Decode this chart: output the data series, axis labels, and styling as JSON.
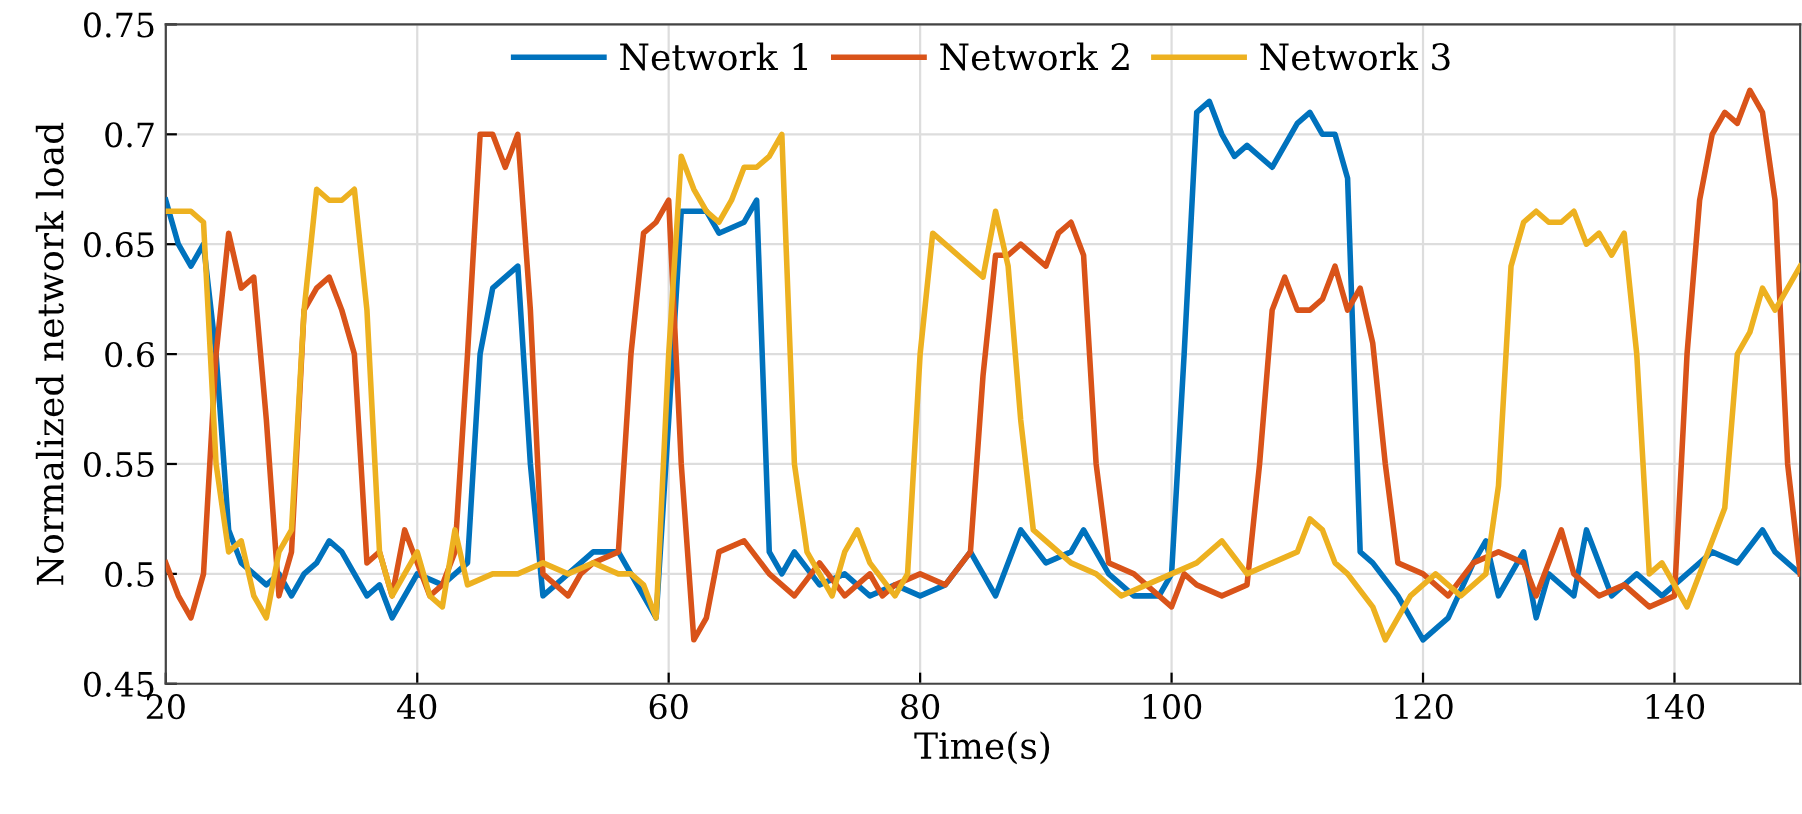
{
  "chart_data": {
    "type": "line",
    "xlabel": "Time(s)",
    "ylabel": "Normalized network load",
    "xlim": [
      20,
      150
    ],
    "xticks": [
      20,
      40,
      60,
      80,
      100,
      120,
      140
    ],
    "ylim": [
      0.45,
      0.75
    ],
    "yticks": [
      0.45,
      0.5,
      0.55,
      0.6,
      0.65,
      0.7,
      0.75
    ],
    "grid": true,
    "legend": "top",
    "marker": "none",
    "line_style": "solid",
    "series": [
      {
        "name": "Network 1",
        "color": "#0072bd",
        "x": [
          20,
          21,
          22,
          23,
          24,
          25,
          26,
          27,
          28,
          29,
          30,
          31,
          32,
          33,
          34,
          35,
          36,
          37,
          38,
          40,
          42,
          44,
          45,
          46,
          47,
          48,
          49,
          50,
          52,
          54,
          56,
          57,
          58,
          59,
          60,
          61,
          63,
          64,
          66,
          67,
          68,
          69,
          70,
          72,
          74,
          76,
          78,
          80,
          82,
          84,
          86,
          88,
          90,
          92,
          93,
          95,
          97,
          99,
          100,
          101,
          102,
          103,
          104,
          105,
          106,
          108,
          110,
          111,
          112,
          113,
          114,
          115,
          116,
          118,
          119,
          120,
          122,
          124,
          125,
          126,
          128,
          129,
          130,
          132,
          133,
          135,
          137,
          139,
          141,
          143,
          145,
          147,
          148,
          150
        ],
        "values": [
          0.67,
          0.65,
          0.64,
          0.65,
          0.6,
          0.52,
          0.505,
          0.5,
          0.495,
          0.5,
          0.49,
          0.5,
          0.505,
          0.515,
          0.51,
          0.5,
          0.49,
          0.495,
          0.48,
          0.5,
          0.495,
          0.505,
          0.6,
          0.63,
          0.635,
          0.64,
          0.55,
          0.49,
          0.5,
          0.51,
          0.51,
          0.5,
          0.49,
          0.48,
          0.57,
          0.665,
          0.665,
          0.655,
          0.66,
          0.67,
          0.51,
          0.5,
          0.51,
          0.495,
          0.5,
          0.49,
          0.495,
          0.49,
          0.495,
          0.51,
          0.49,
          0.52,
          0.505,
          0.51,
          0.52,
          0.5,
          0.49,
          0.49,
          0.5,
          0.6,
          0.71,
          0.715,
          0.7,
          0.69,
          0.695,
          0.685,
          0.705,
          0.71,
          0.7,
          0.7,
          0.68,
          0.51,
          0.505,
          0.49,
          0.48,
          0.47,
          0.48,
          0.505,
          0.515,
          0.49,
          0.51,
          0.48,
          0.5,
          0.49,
          0.52,
          0.49,
          0.5,
          0.49,
          0.5,
          0.51,
          0.505,
          0.52,
          0.51,
          0.5
        ]
      },
      {
        "name": "Network 2",
        "color": "#d95319",
        "x": [
          20,
          21,
          22,
          23,
          24,
          25,
          26,
          27,
          28,
          29,
          30,
          31,
          32,
          33,
          34,
          35,
          36,
          37,
          38,
          39,
          40,
          41,
          42,
          43,
          44,
          45,
          46,
          47,
          48,
          49,
          50,
          52,
          53,
          54,
          56,
          57,
          58,
          59,
          60,
          61,
          62,
          63,
          64,
          66,
          68,
          70,
          72,
          74,
          76,
          77,
          78,
          80,
          82,
          84,
          85,
          86,
          87,
          88,
          89,
          90,
          91,
          92,
          93,
          94,
          95,
          97,
          99,
          100,
          101,
          102,
          104,
          106,
          107,
          108,
          109,
          110,
          111,
          112,
          113,
          114,
          115,
          116,
          117,
          118,
          120,
          122,
          124,
          126,
          128,
          129,
          131,
          132,
          134,
          136,
          138,
          140,
          141,
          142,
          143,
          144,
          145,
          146,
          147,
          148,
          149,
          150
        ],
        "values": [
          0.505,
          0.49,
          0.48,
          0.5,
          0.6,
          0.655,
          0.63,
          0.635,
          0.57,
          0.49,
          0.51,
          0.62,
          0.63,
          0.635,
          0.62,
          0.6,
          0.505,
          0.51,
          0.49,
          0.52,
          0.505,
          0.49,
          0.495,
          0.51,
          0.6,
          0.7,
          0.7,
          0.685,
          0.7,
          0.62,
          0.5,
          0.49,
          0.5,
          0.505,
          0.51,
          0.6,
          0.655,
          0.66,
          0.67,
          0.55,
          0.47,
          0.48,
          0.51,
          0.515,
          0.5,
          0.49,
          0.505,
          0.49,
          0.5,
          0.49,
          0.495,
          0.5,
          0.495,
          0.51,
          0.59,
          0.645,
          0.645,
          0.65,
          0.645,
          0.64,
          0.655,
          0.66,
          0.645,
          0.55,
          0.505,
          0.5,
          0.49,
          0.485,
          0.5,
          0.495,
          0.49,
          0.495,
          0.55,
          0.62,
          0.635,
          0.62,
          0.62,
          0.625,
          0.64,
          0.62,
          0.63,
          0.605,
          0.55,
          0.505,
          0.5,
          0.49,
          0.505,
          0.51,
          0.505,
          0.49,
          0.52,
          0.5,
          0.49,
          0.495,
          0.485,
          0.49,
          0.6,
          0.67,
          0.7,
          0.71,
          0.705,
          0.72,
          0.71,
          0.67,
          0.55,
          0.5
        ]
      },
      {
        "name": "Network 3",
        "color": "#edb120",
        "x": [
          20,
          21,
          22,
          23,
          24,
          25,
          26,
          27,
          28,
          29,
          30,
          31,
          32,
          33,
          34,
          35,
          36,
          37,
          38,
          40,
          41,
          42,
          43,
          44,
          46,
          48,
          50,
          52,
          54,
          56,
          57,
          58,
          59,
          60,
          61,
          62,
          63,
          64,
          65,
          66,
          67,
          68,
          69,
          70,
          71,
          72,
          73,
          74,
          75,
          76,
          78,
          79,
          80,
          81,
          82,
          83,
          84,
          85,
          86,
          87,
          88,
          89,
          90,
          92,
          94,
          96,
          98,
          100,
          102,
          104,
          106,
          108,
          110,
          111,
          112,
          113,
          114,
          116,
          117,
          119,
          121,
          123,
          125,
          126,
          127,
          128,
          129,
          130,
          131,
          132,
          133,
          134,
          135,
          136,
          137,
          138,
          139,
          140,
          141,
          142,
          144,
          145,
          146,
          147,
          148,
          149,
          150
        ],
        "values": [
          0.665,
          0.665,
          0.665,
          0.66,
          0.55,
          0.51,
          0.515,
          0.49,
          0.48,
          0.51,
          0.52,
          0.62,
          0.675,
          0.67,
          0.67,
          0.675,
          0.62,
          0.51,
          0.49,
          0.51,
          0.49,
          0.485,
          0.52,
          0.495,
          0.5,
          0.5,
          0.505,
          0.5,
          0.505,
          0.5,
          0.5,
          0.495,
          0.48,
          0.6,
          0.69,
          0.675,
          0.665,
          0.66,
          0.67,
          0.685,
          0.685,
          0.69,
          0.7,
          0.55,
          0.51,
          0.5,
          0.49,
          0.51,
          0.52,
          0.505,
          0.49,
          0.5,
          0.6,
          0.655,
          0.65,
          0.645,
          0.64,
          0.635,
          0.665,
          0.64,
          0.57,
          0.52,
          0.515,
          0.505,
          0.5,
          0.49,
          0.495,
          0.5,
          0.505,
          0.515,
          0.5,
          0.505,
          0.51,
          0.525,
          0.52,
          0.505,
          0.5,
          0.485,
          0.47,
          0.49,
          0.5,
          0.49,
          0.5,
          0.54,
          0.64,
          0.66,
          0.665,
          0.66,
          0.66,
          0.665,
          0.65,
          0.655,
          0.645,
          0.655,
          0.6,
          0.5,
          0.505,
          0.495,
          0.485,
          0.5,
          0.53,
          0.6,
          0.61,
          0.63,
          0.62,
          0.63,
          0.64
        ]
      }
    ]
  }
}
